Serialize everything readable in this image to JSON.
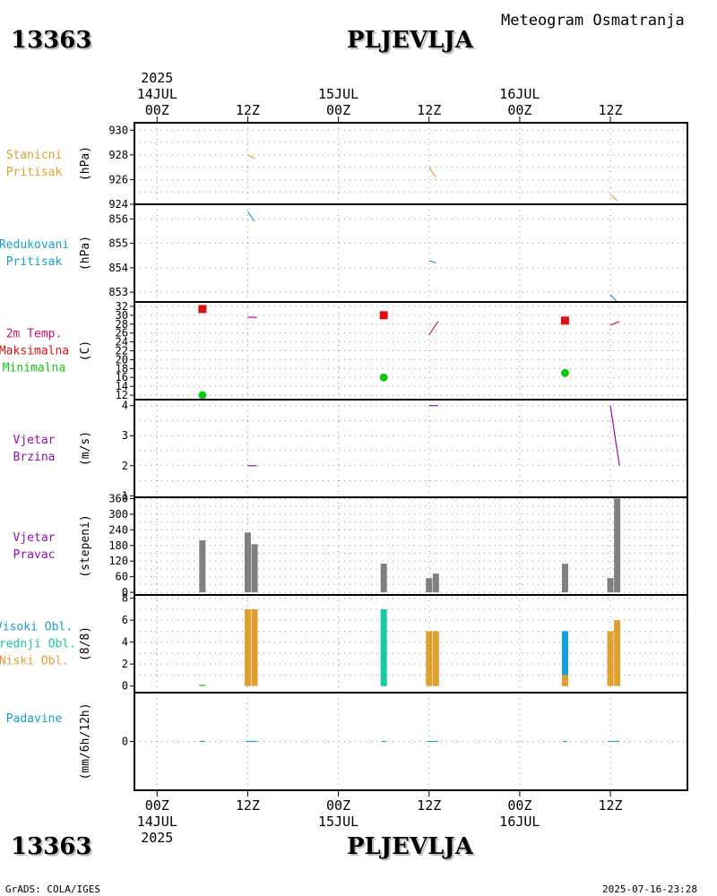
{
  "header": {
    "station_id": "13363",
    "station_name": "PLJEVLJA",
    "product": "Meteogram Osmatranja"
  },
  "footer": {
    "station_id": "13363",
    "station_name": "PLJEVLJA",
    "source": "GrADS: COLA/IGES",
    "timestamp": "2025-07-16-23:28"
  },
  "chart_data": {
    "type": "meteogram",
    "time_axis": {
      "unit": "hours since 14JUL2025 00Z",
      "range": [
        -5,
        117
      ],
      "year": "2025",
      "ticks": [
        {
          "t": 0,
          "label": "00Z",
          "date": "14JUL"
        },
        {
          "t": 20,
          "label": "12Z",
          "date": ""
        },
        {
          "t": 40,
          "label": "00Z",
          "date": "15JUL"
        },
        {
          "t": 60,
          "label": "12Z",
          "date": ""
        },
        {
          "t": 80,
          "label": "00Z",
          "date": "16JUL"
        },
        {
          "t": 100,
          "label": "12Z",
          "date": ""
        }
      ]
    },
    "panels": [
      {
        "id": "stp",
        "labels": [
          "Stanicni",
          "Pritisak"
        ],
        "label_colors": [
          "#e0a030",
          "#e0a030"
        ],
        "unit": "(hPa)",
        "ylim": [
          924,
          930.6
        ],
        "yticks": [
          {
            "v": 924,
            "l": "924"
          },
          {
            "v": 926,
            "l": "926"
          },
          {
            "v": 928,
            "l": "928"
          },
          {
            "v": 930,
            "l": "930"
          }
        ],
        "grid": [
          925,
          926,
          927,
          928,
          929,
          930
        ],
        "segments": [
          {
            "t0": 20,
            "v0": 928.0,
            "t1": 21.5,
            "v1": 927.7,
            "color": "#e0a030"
          },
          {
            "t0": 60,
            "v0": 927.0,
            "t1": 61.5,
            "v1": 926.2,
            "color": "#e0a030"
          },
          {
            "t0": 100,
            "v0": 924.8,
            "t1": 101.5,
            "v1": 924.3,
            "color": "#e0a030"
          }
        ]
      },
      {
        "id": "mslp",
        "labels": [
          "Redukovani",
          "Pritisak"
        ],
        "label_colors": [
          "#1aa0c8",
          "#1aa0c8"
        ],
        "unit": "(hPa)",
        "ylim": [
          852.6,
          856.6
        ],
        "yticks": [
          {
            "v": 853,
            "l": "853"
          },
          {
            "v": 854,
            "l": "854"
          },
          {
            "v": 855,
            "l": "855"
          },
          {
            "v": 856,
            "l": "856"
          }
        ],
        "grid": [
          853,
          854,
          855,
          856
        ],
        "segments": [
          {
            "t0": 20,
            "v0": 856.3,
            "t1": 21.5,
            "v1": 855.9,
            "color": "#1aa0c8"
          },
          {
            "t0": 60,
            "v0": 854.3,
            "t1": 61.5,
            "v1": 854.2,
            "color": "#1aa0c8"
          },
          {
            "t0": 100,
            "v0": 852.9,
            "t1": 101.5,
            "v1": 852.6,
            "color": "#1aa0c8"
          }
        ]
      },
      {
        "id": "temp",
        "labels": [
          "2m Temp.",
          "Maksimalna",
          "Minimalna"
        ],
        "label_colors": [
          "#d0106a",
          "#e01010",
          "#10c810"
        ],
        "unit": "(C)",
        "ylim": [
          11,
          33
        ],
        "yticks": [
          {
            "v": 12,
            "l": "12"
          },
          {
            "v": 14,
            "l": "14"
          },
          {
            "v": 16,
            "l": "16"
          },
          {
            "v": 18,
            "l": "18"
          },
          {
            "v": 20,
            "l": "20"
          },
          {
            "v": 22,
            "l": "22"
          },
          {
            "v": 24,
            "l": "24"
          },
          {
            "v": 26,
            "l": "26"
          },
          {
            "v": 28,
            "l": "28"
          },
          {
            "v": 30,
            "l": "30"
          },
          {
            "v": 32,
            "l": "32"
          }
        ],
        "grid": [
          12,
          14,
          16,
          18,
          20,
          22,
          24,
          26,
          28,
          30,
          32
        ],
        "segments": [
          {
            "t0": 20,
            "v0": 29.6,
            "t1": 22,
            "v1": 29.5,
            "color": "#c000c0"
          },
          {
            "t0": 60,
            "v0": 25.6,
            "t1": 62,
            "v1": 28.6,
            "color": "#d0106a"
          },
          {
            "t0": 100,
            "v0": 27.8,
            "t1": 102,
            "v1": 28.6,
            "color": "#d0106a"
          }
        ],
        "tmax": [
          {
            "t": 10,
            "v": 31.4
          },
          {
            "t": 50,
            "v": 30.0
          },
          {
            "t": 90,
            "v": 28.8
          }
        ],
        "tmin": [
          {
            "t": 10,
            "v": 12.0
          },
          {
            "t": 50,
            "v": 16.0
          },
          {
            "t": 90,
            "v": 17.0
          }
        ],
        "tmax_color": "#e01010",
        "tmin_color": "#10c810"
      },
      {
        "id": "wspd",
        "labels": [
          "Vjetar",
          "Brzina"
        ],
        "label_colors": [
          "#9010b0",
          "#9010b0"
        ],
        "unit": "(m/s)",
        "ylim": [
          0.95,
          4.2
        ],
        "yticks": [
          {
            "v": 1,
            "l": "1"
          },
          {
            "v": 2,
            "l": "2"
          },
          {
            "v": 3,
            "l": "3"
          },
          {
            "v": 4,
            "l": "4"
          }
        ],
        "grid": [
          1.5,
          2,
          2.5,
          3,
          3.5,
          4
        ],
        "segments": [
          {
            "t0": 20,
            "v0": 2.0,
            "t1": 22,
            "v1": 2.0,
            "color": "#9010b0"
          },
          {
            "t0": 60,
            "v0": 4.0,
            "t1": 62,
            "v1": 4.0,
            "color": "#9010b0"
          },
          {
            "t0": 100,
            "v0": 4.0,
            "t1": 102,
            "v1": 2.0,
            "color": "#9010b0"
          }
        ]
      },
      {
        "id": "wdir",
        "labels": [
          "Vjetar",
          "Pravac"
        ],
        "label_colors": [
          "#9010b0",
          "#9010b0"
        ],
        "unit": "(stepeni)",
        "ylim": [
          -10,
          365
        ],
        "yticks": [
          {
            "v": 0,
            "l": "0"
          },
          {
            "v": 60,
            "l": "60"
          },
          {
            "v": 120,
            "l": "120"
          },
          {
            "v": 180,
            "l": "180"
          },
          {
            "v": 240,
            "l": "240"
          },
          {
            "v": 300,
            "l": "300"
          },
          {
            "v": 360,
            "l": "360"
          }
        ],
        "grid": [
          0,
          30,
          60,
          90,
          120,
          150,
          180,
          210,
          240,
          270,
          300,
          330,
          360
        ],
        "bar_color": "#808080",
        "bars": [
          {
            "t": 10,
            "v": 200
          },
          {
            "t": 20,
            "v": 230
          },
          {
            "t": 21.5,
            "v": 185
          },
          {
            "t": 50,
            "v": 110
          },
          {
            "t": 60,
            "v": 55
          },
          {
            "t": 61.5,
            "v": 72
          },
          {
            "t": 90,
            "v": 110
          },
          {
            "t": 100,
            "v": 55
          },
          {
            "t": 101.5,
            "v": 360
          }
        ]
      },
      {
        "id": "clouds",
        "labels": [
          "Visoki Obl.",
          "Srednji Obl.",
          "Niski Obl."
        ],
        "label_colors": [
          "#1aa0c8",
          "#18c8a0",
          "#e0a030"
        ],
        "unit": "(8/8)",
        "ylim": [
          -0.6,
          8.3
        ],
        "yticks": [
          {
            "v": 0,
            "l": "0"
          },
          {
            "v": 2,
            "l": "2"
          },
          {
            "v": 4,
            "l": "4"
          },
          {
            "v": 6,
            "l": "6"
          },
          {
            "v": 8,
            "l": "8"
          }
        ],
        "grid": [
          1,
          2,
          3,
          4,
          5,
          6,
          7,
          8
        ],
        "bars": [
          {
            "t": 10,
            "v": 0.1,
            "color": "#10c810"
          },
          {
            "t": 20,
            "v": 7,
            "color": "#e0a030"
          },
          {
            "t": 21.5,
            "v": 7,
            "color": "#e0a030"
          },
          {
            "t": 50,
            "v": 7,
            "color": "#18c8a0"
          },
          {
            "t": 60,
            "v": 5,
            "color": "#e0a030"
          },
          {
            "t": 61.5,
            "v": 5,
            "color": "#e0a030"
          },
          {
            "t": 90,
            "v": 5,
            "color": "#10a0e0"
          },
          {
            "t": 90,
            "v": 1,
            "color": "#e0a030"
          },
          {
            "t": 100,
            "v": 5,
            "color": "#e0a030"
          },
          {
            "t": 101.5,
            "v": 6,
            "color": "#e0a030"
          }
        ]
      },
      {
        "id": "precip",
        "labels": [
          "Padavine"
        ],
        "label_colors": [
          "#1aa0c8"
        ],
        "unit": "(mm/6h/12h)",
        "ylim": [
          -1,
          1
        ],
        "yticks": [
          {
            "v": 0,
            "l": "0"
          }
        ],
        "grid": [
          0
        ],
        "segments": [
          {
            "t0": 9.5,
            "v0": 0,
            "t1": 10.5,
            "v1": 0,
            "color": "#1aa0c8"
          },
          {
            "t0": 19.5,
            "v0": 0,
            "t1": 22,
            "v1": 0,
            "color": "#1aa0c8"
          },
          {
            "t0": 49.5,
            "v0": 0,
            "t1": 50.5,
            "v1": 0,
            "color": "#1aa0c8"
          },
          {
            "t0": 59.5,
            "v0": 0,
            "t1": 62,
            "v1": 0,
            "color": "#1aa0c8"
          },
          {
            "t0": 89.5,
            "v0": 0,
            "t1": 90.5,
            "v1": 0,
            "color": "#1aa0c8"
          },
          {
            "t0": 99.5,
            "v0": 0,
            "t1": 102,
            "v1": 0,
            "color": "#1aa0c8"
          }
        ]
      }
    ]
  }
}
